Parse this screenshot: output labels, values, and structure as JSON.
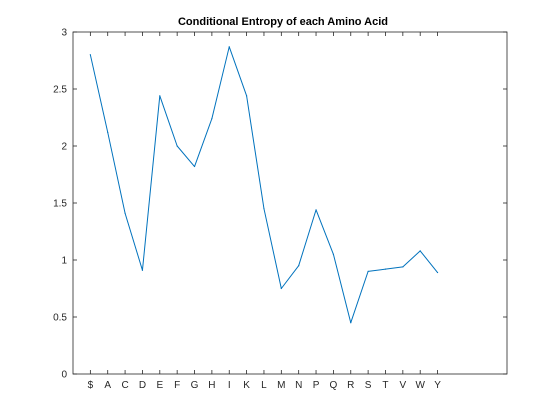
{
  "chart_data": {
    "type": "line",
    "title": "Conditional Entropy of each Amino Acid",
    "xlabel": "",
    "ylabel": "",
    "categories": [
      "$",
      "A",
      "C",
      "D",
      "E",
      "F",
      "G",
      "H",
      "I",
      "K",
      "L",
      "M",
      "N",
      "P",
      "Q",
      "R",
      "S",
      "T",
      "V",
      "W",
      "Y"
    ],
    "x_positions": [
      1,
      2,
      3,
      4,
      5,
      6,
      7,
      8,
      9,
      10,
      11,
      12,
      13,
      14,
      15,
      16,
      17,
      18,
      19,
      20,
      21
    ],
    "xlim": [
      0,
      25
    ],
    "ylim": [
      0,
      3
    ],
    "yticks": [
      0,
      0.5,
      1,
      1.5,
      2,
      2.5,
      3
    ],
    "ytick_labels": [
      "0",
      "0.5",
      "1",
      "1.5",
      "2",
      "2.5",
      "3"
    ],
    "grid": false,
    "legend": "none",
    "series": [
      {
        "values": [
          2.8,
          2.12,
          1.41,
          0.91,
          2.44,
          2.0,
          1.82,
          2.24,
          2.87,
          2.44,
          1.45,
          0.75,
          0.95,
          1.44,
          1.05,
          0.45,
          0.9,
          0.92,
          0.94,
          1.08,
          0.89
        ],
        "color": "#0072bd"
      }
    ]
  }
}
